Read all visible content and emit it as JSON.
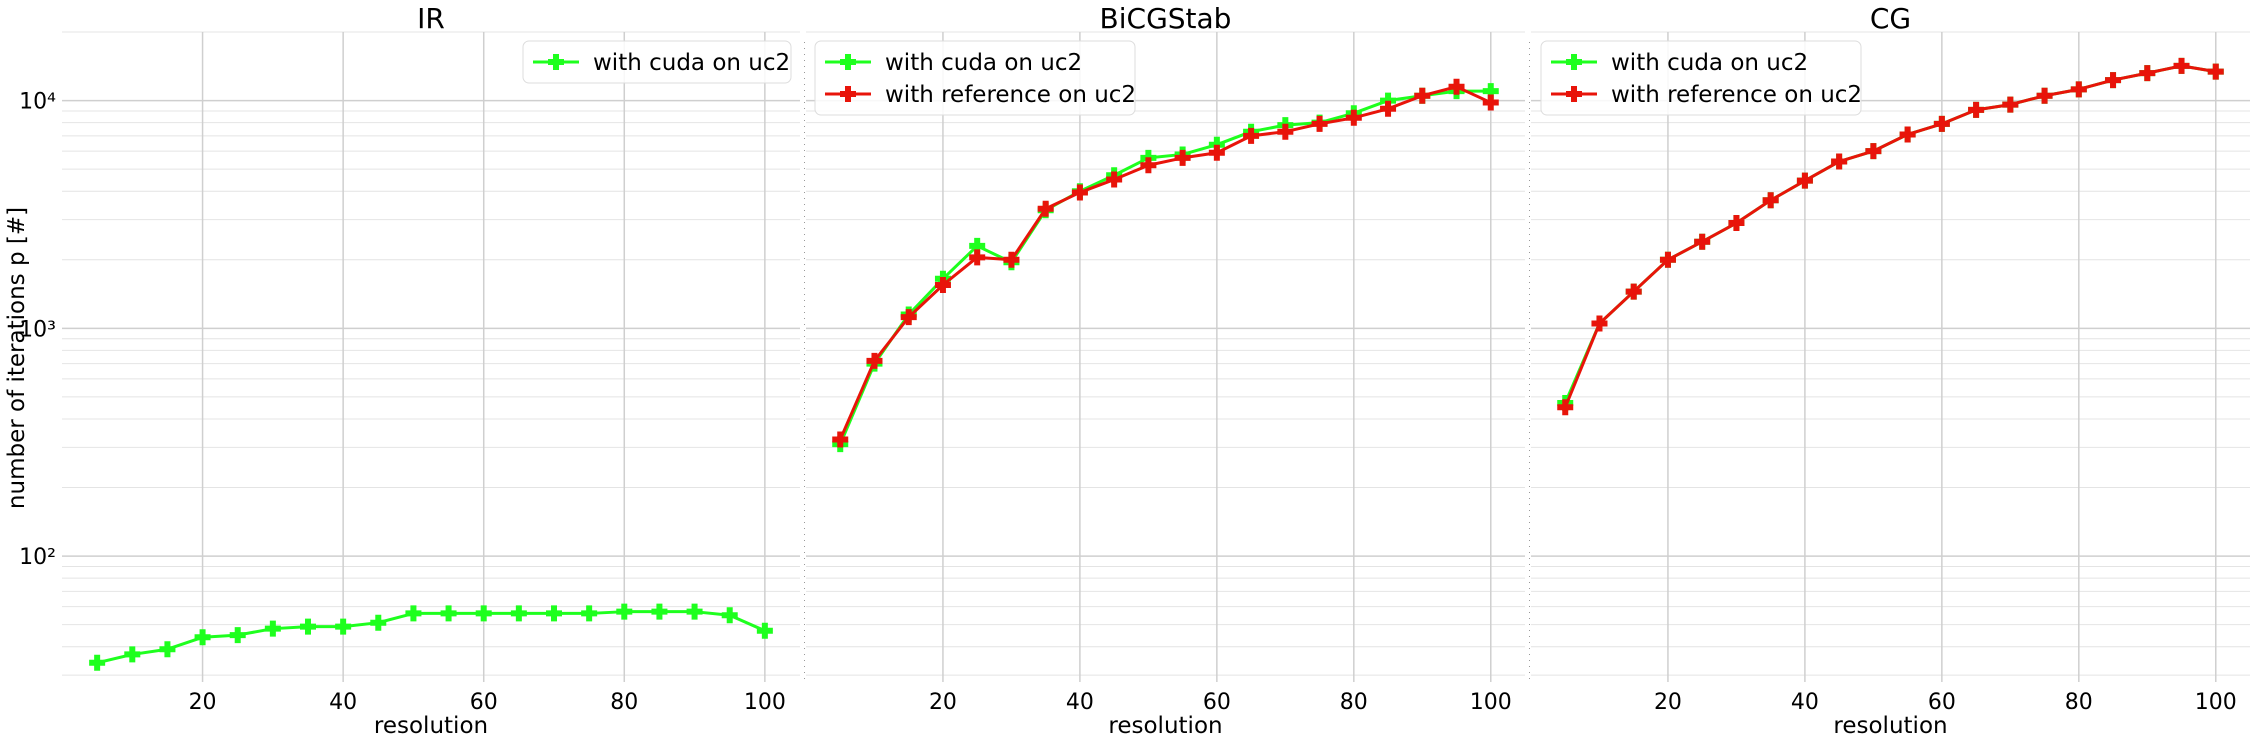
{
  "figure": {
    "ylabel": "number of iterations p [#]"
  },
  "chart_data": [
    {
      "type": "line",
      "title": "IR",
      "xlabel": "resolution",
      "ylabel": "number of iterations p [#]",
      "yscale": "log",
      "xlim": [
        0,
        105
      ],
      "ylim": [
        28,
        20000
      ],
      "xticks": [
        20,
        40,
        60,
        80,
        100
      ],
      "yticks": [
        {
          "value": 100,
          "label": "10²"
        },
        {
          "value": 1000,
          "label": "10³"
        },
        {
          "value": 10000,
          "label": "10⁴"
        }
      ],
      "grid": true,
      "legend": "top-right",
      "series": [
        {
          "name": "with cuda on uc2",
          "color": "#1eff1e",
          "x": [
            5,
            10,
            15,
            20,
            25,
            30,
            35,
            40,
            45,
            50,
            55,
            60,
            65,
            70,
            75,
            80,
            85,
            90,
            95,
            100
          ],
          "y": [
            34,
            37,
            39,
            44,
            45,
            48,
            49,
            49,
            51,
            56,
            56,
            56,
            56,
            56,
            56,
            57,
            57,
            57,
            55,
            47
          ]
        }
      ]
    },
    {
      "type": "line",
      "title": "BiCGStab",
      "xlabel": "resolution",
      "yscale": "log",
      "xlim": [
        0,
        105
      ],
      "ylim": [
        28,
        20000
      ],
      "xticks": [
        20,
        40,
        60,
        80,
        100
      ],
      "grid": true,
      "legend": "top-left",
      "series": [
        {
          "name": "with cuda on uc2",
          "color": "#1eff1e",
          "x": [
            5,
            10,
            15,
            20,
            25,
            30,
            35,
            40,
            45,
            50,
            55,
            60,
            65,
            70,
            75,
            80,
            85,
            90,
            95,
            100
          ],
          "y": [
            310,
            700,
            1150,
            1650,
            2300,
            1950,
            3300,
            4000,
            4700,
            5600,
            5800,
            6400,
            7300,
            7800,
            8000,
            8800,
            10000,
            10500,
            11000,
            11000
          ]
        },
        {
          "name": "with reference on uc2",
          "color": "#e8140a",
          "x": [
            5,
            10,
            15,
            20,
            25,
            30,
            35,
            40,
            45,
            50,
            55,
            60,
            65,
            70,
            75,
            80,
            85,
            90,
            95,
            100
          ],
          "y": [
            325,
            720,
            1120,
            1550,
            2050,
            2000,
            3350,
            3950,
            4500,
            5200,
            5600,
            5900,
            7000,
            7300,
            7900,
            8400,
            9200,
            10500,
            11500,
            9800
          ]
        }
      ]
    },
    {
      "type": "line",
      "title": "CG",
      "xlabel": "resolution",
      "yscale": "log",
      "xlim": [
        0,
        105
      ],
      "ylim": [
        28,
        20000
      ],
      "xticks": [
        20,
        40,
        60,
        80,
        100
      ],
      "grid": true,
      "legend": "top-left",
      "series": [
        {
          "name": "with cuda on uc2",
          "color": "#1eff1e",
          "x": [
            5,
            10,
            15,
            20,
            25,
            30,
            35,
            40,
            45,
            50,
            55,
            60,
            65,
            70,
            75,
            80,
            85,
            90,
            95,
            100
          ],
          "y": [
            470,
            1050,
            1450,
            2000,
            2400,
            2900,
            3650,
            4450,
            5400,
            6000,
            7100,
            7900,
            9100,
            9600,
            10500,
            11200,
            12300,
            13200,
            14200,
            13400
          ]
        },
        {
          "name": "with reference on uc2",
          "color": "#e8140a",
          "x": [
            5,
            10,
            15,
            20,
            25,
            30,
            35,
            40,
            45,
            50,
            55,
            60,
            65,
            70,
            75,
            80,
            85,
            90,
            95,
            100
          ],
          "y": [
            450,
            1050,
            1450,
            2000,
            2400,
            2900,
            3650,
            4450,
            5400,
            6000,
            7100,
            7900,
            9100,
            9600,
            10500,
            11200,
            12300,
            13200,
            14200,
            13400
          ]
        }
      ]
    }
  ]
}
